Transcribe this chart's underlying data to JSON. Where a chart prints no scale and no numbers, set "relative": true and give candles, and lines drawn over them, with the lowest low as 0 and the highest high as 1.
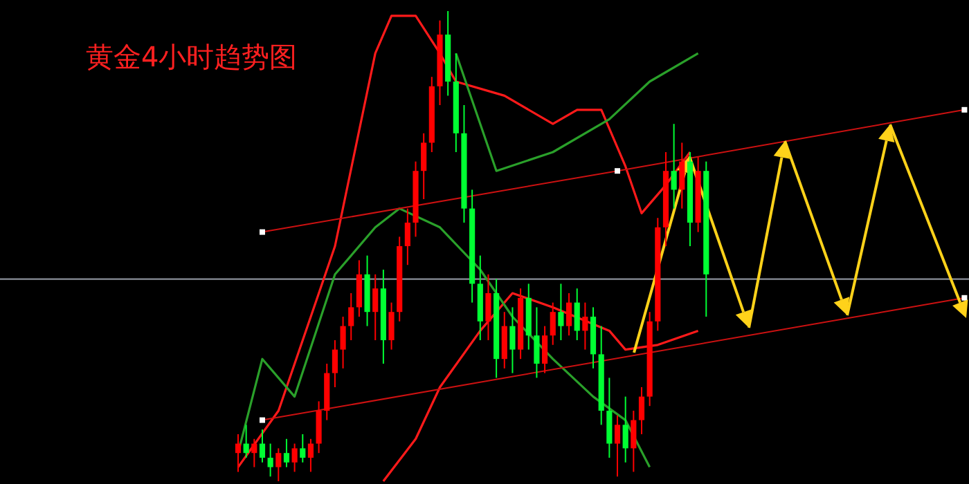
{
  "chart_data": {
    "type": "candlestick",
    "title": "黄金4小时趋势图",
    "relative": true,
    "categories": [
      null,
      null,
      null,
      null,
      null,
      null,
      null,
      null,
      null,
      null,
      null,
      null,
      null,
      null,
      null,
      null,
      null,
      null,
      null,
      null,
      null,
      null,
      null,
      null,
      null,
      null,
      null,
      null,
      null,
      null,
      null,
      null,
      null,
      null,
      null,
      null,
      null,
      null,
      null,
      null,
      null,
      null,
      null,
      null,
      null,
      null,
      null,
      null,
      null,
      null,
      null,
      null,
      null,
      null,
      null,
      null,
      null,
      null,
      null,
      null,
      null,
      null,
      null,
      null,
      null,
      null,
      null,
      null,
      null,
      null,
      null,
      null,
      null,
      null,
      null,
      null,
      null,
      null,
      null,
      null,
      null,
      null,
      null,
      null,
      null,
      null,
      null,
      null,
      null,
      null,
      null
    ],
    "ohlc": [
      [
        0.06,
        0.1,
        0.02,
        0.08
      ],
      [
        0.08,
        0.12,
        0.05,
        0.06
      ],
      [
        0.06,
        0.09,
        0.03,
        0.08
      ],
      [
        0.08,
        0.11,
        0.04,
        0.05
      ],
      [
        0.05,
        0.08,
        0.01,
        0.03
      ],
      [
        0.03,
        0.07,
        0.0,
        0.06
      ],
      [
        0.06,
        0.09,
        0.03,
        0.04
      ],
      [
        0.04,
        0.08,
        0.02,
        0.07
      ],
      [
        0.07,
        0.1,
        0.04,
        0.05
      ],
      [
        0.05,
        0.09,
        0.02,
        0.08
      ],
      [
        0.08,
        0.17,
        0.06,
        0.15
      ],
      [
        0.15,
        0.25,
        0.13,
        0.23
      ],
      [
        0.23,
        0.3,
        0.2,
        0.28
      ],
      [
        0.28,
        0.35,
        0.24,
        0.33
      ],
      [
        0.33,
        0.4,
        0.3,
        0.37
      ],
      [
        0.37,
        0.47,
        0.35,
        0.44
      ],
      [
        0.44,
        0.48,
        0.33,
        0.36
      ],
      [
        0.36,
        0.44,
        0.3,
        0.41
      ],
      [
        0.41,
        0.45,
        0.25,
        0.3
      ],
      [
        0.3,
        0.38,
        0.28,
        0.36
      ],
      [
        0.36,
        0.52,
        0.34,
        0.5
      ],
      [
        0.5,
        0.58,
        0.46,
        0.55
      ],
      [
        0.55,
        0.68,
        0.52,
        0.66
      ],
      [
        0.66,
        0.74,
        0.6,
        0.72
      ],
      [
        0.72,
        0.86,
        0.7,
        0.84
      ],
      [
        0.84,
        0.98,
        0.8,
        0.95
      ],
      [
        0.95,
        1.0,
        0.82,
        0.85
      ],
      [
        0.85,
        0.91,
        0.7,
        0.74
      ],
      [
        0.74,
        0.8,
        0.55,
        0.58
      ],
      [
        0.58,
        0.62,
        0.38,
        0.42
      ],
      [
        0.42,
        0.48,
        0.3,
        0.34
      ],
      [
        0.34,
        0.44,
        0.3,
        0.4
      ],
      [
        0.4,
        0.43,
        0.22,
        0.26
      ],
      [
        0.26,
        0.36,
        0.24,
        0.33
      ],
      [
        0.33,
        0.37,
        0.23,
        0.28
      ],
      [
        0.28,
        0.41,
        0.26,
        0.39
      ],
      [
        0.39,
        0.42,
        0.28,
        0.31
      ],
      [
        0.31,
        0.37,
        0.22,
        0.25
      ],
      [
        0.25,
        0.33,
        0.23,
        0.31
      ],
      [
        0.31,
        0.38,
        0.29,
        0.36
      ],
      [
        0.36,
        0.42,
        0.3,
        0.33
      ],
      [
        0.33,
        0.4,
        0.31,
        0.38
      ],
      [
        0.38,
        0.41,
        0.3,
        0.32
      ],
      [
        0.32,
        0.38,
        0.28,
        0.35
      ],
      [
        0.35,
        0.37,
        0.24,
        0.27
      ],
      [
        0.27,
        0.33,
        0.12,
        0.15
      ],
      [
        0.15,
        0.22,
        0.05,
        0.08
      ],
      [
        0.08,
        0.14,
        0.01,
        0.12
      ],
      [
        0.12,
        0.18,
        0.04,
        0.07
      ],
      [
        0.07,
        0.15,
        0.02,
        0.13
      ],
      [
        0.13,
        0.2,
        0.1,
        0.18
      ],
      [
        0.18,
        0.36,
        0.16,
        0.34
      ],
      [
        0.34,
        0.56,
        0.32,
        0.54
      ],
      [
        0.54,
        0.7,
        0.5,
        0.66
      ],
      [
        0.66,
        0.76,
        0.58,
        0.62
      ],
      [
        0.62,
        0.72,
        0.58,
        0.68
      ],
      [
        0.68,
        0.7,
        0.5,
        0.55
      ],
      [
        0.55,
        0.69,
        0.53,
        0.66
      ],
      [
        0.66,
        0.68,
        0.35,
        0.44
      ],
      null,
      null,
      null,
      null,
      null,
      null,
      null,
      null,
      null,
      null,
      null,
      null,
      null,
      null,
      null,
      null,
      null,
      null,
      null,
      null,
      null,
      null,
      null,
      null,
      null,
      null,
      null,
      null,
      null,
      null,
      null,
      null
    ],
    "colors": [
      "#ff0000",
      "#00ff33",
      "#ff0000",
      "#00ff33",
      "#00ff33",
      "#ff0000",
      "#00ff33",
      "#ff0000",
      "#00ff33",
      "#ff0000",
      "#ff0000",
      "#ff0000",
      "#ff0000",
      "#ff0000",
      "#ff0000",
      "#ff0000",
      "#00ff33",
      "#ff0000",
      "#00ff33",
      "#ff0000",
      "#ff0000",
      "#ff0000",
      "#ff0000",
      "#ff0000",
      "#ff0000",
      "#ff0000",
      "#00ff33",
      "#00ff33",
      "#00ff33",
      "#00ff33",
      "#00ff33",
      "#ff0000",
      "#00ff33",
      "#ff0000",
      "#00ff33",
      "#ff0000",
      "#00ff33",
      "#00ff33",
      "#ff0000",
      "#ff0000",
      "#00ff33",
      "#ff0000",
      "#00ff33",
      "#ff0000",
      "#00ff33",
      "#00ff33",
      "#00ff33",
      "#ff0000",
      "#00ff33",
      "#ff0000",
      "#ff0000",
      "#ff0000",
      "#ff0000",
      "#ff0000",
      "#00ff33",
      "#ff0000",
      "#00ff33",
      "#ff0000",
      "#00ff33",
      null,
      null,
      null,
      null,
      null,
      null,
      null,
      null,
      null,
      null,
      null,
      null,
      null,
      null,
      null,
      null,
      null,
      null,
      null,
      null,
      null,
      null,
      null,
      null,
      null,
      null,
      null,
      null,
      null,
      null,
      null,
      null
    ],
    "series": [
      {
        "type": "line",
        "color": "#ff1a1a",
        "values": [
          0.03,
          null,
          null,
          null,
          null,
          0.15,
          null,
          null,
          null,
          null,
          null,
          null,
          0.5,
          null,
          null,
          null,
          null,
          0.91,
          null,
          0.99,
          null,
          null,
          0.99,
          null,
          null,
          0.91,
          null,
          0.85,
          null,
          null,
          null,
          null,
          null,
          0.82,
          null,
          null,
          null,
          null,
          null,
          0.76,
          null,
          null,
          0.79,
          null,
          null,
          0.79,
          null,
          null,
          0.67,
          null,
          0.57,
          null,
          null,
          0.63,
          null,
          null,
          0.7,
          null,
          null,
          null,
          null,
          null,
          null,
          null,
          null,
          null,
          null,
          null,
          null,
          null,
          null,
          null,
          null,
          null,
          null,
          null,
          null,
          null,
          null,
          null,
          null,
          null,
          null,
          null,
          null,
          null,
          null,
          null,
          null,
          null,
          null
        ]
      },
      {
        "type": "line",
        "color": "#ff1a1a",
        "values": [
          null,
          null,
          null,
          null,
          null,
          null,
          null,
          null,
          null,
          null,
          null,
          null,
          null,
          null,
          null,
          null,
          null,
          null,
          0.0,
          null,
          null,
          null,
          0.09,
          null,
          null,
          0.2,
          null,
          null,
          null,
          null,
          0.32,
          null,
          null,
          null,
          0.4,
          null,
          null,
          null,
          null,
          0.37,
          null,
          null,
          null,
          null,
          null,
          null,
          0.32,
          null,
          0.28,
          null,
          null,
          null,
          0.29,
          null,
          null,
          null,
          null,
          0.32,
          null,
          null,
          null,
          null,
          null,
          null,
          null,
          null,
          null,
          null,
          null,
          null,
          null,
          null,
          null,
          null,
          null,
          null,
          null,
          null,
          null,
          null,
          null,
          null,
          null,
          null,
          null,
          null,
          null,
          null,
          null,
          null,
          null
        ]
      },
      {
        "type": "line",
        "color": "#2aa02a",
        "values": [
          null,
          null,
          null,
          null,
          null,
          null,
          null,
          null,
          null,
          null,
          null,
          null,
          null,
          null,
          null,
          null,
          null,
          null,
          null,
          null,
          null,
          null,
          null,
          null,
          null,
          null,
          null,
          0.91,
          null,
          null,
          null,
          null,
          0.66,
          null,
          null,
          null,
          null,
          null,
          null,
          0.7,
          null,
          null,
          null,
          null,
          null,
          null,
          0.77,
          null,
          null,
          null,
          null,
          0.85,
          null,
          null,
          null,
          null,
          null,
          0.91,
          null,
          null,
          null,
          null,
          null,
          null,
          null,
          null,
          null,
          null,
          null,
          null,
          null,
          null,
          null,
          null,
          null,
          null,
          null,
          null,
          null,
          null,
          null,
          null,
          null,
          null,
          null,
          null,
          null,
          null,
          null,
          null,
          null
        ]
      },
      {
        "type": "line",
        "color": "#2aa02a",
        "values": [
          0.06,
          null,
          null,
          0.26,
          null,
          null,
          null,
          0.18,
          null,
          null,
          null,
          null,
          0.44,
          null,
          null,
          null,
          null,
          0.54,
          null,
          null,
          0.58,
          null,
          null,
          null,
          null,
          0.54,
          null,
          null,
          null,
          null,
          0.45,
          null,
          null,
          null,
          0.35,
          null,
          null,
          null,
          null,
          0.26,
          null,
          null,
          null,
          null,
          0.18,
          null,
          null,
          null,
          0.13,
          null,
          null,
          0.03,
          null,
          null,
          null,
          null,
          null,
          null,
          null,
          null,
          null,
          null,
          null,
          null,
          null,
          null,
          null,
          null,
          null,
          null,
          null,
          null,
          null,
          null,
          null,
          null,
          null,
          null,
          null,
          null,
          null,
          null,
          null,
          null,
          null,
          null,
          null,
          null,
          null,
          null,
          null
        ]
      },
      {
        "type": "line",
        "color": "#cc1111",
        "marker": "square",
        "values": [
          null,
          null,
          null,
          0.53,
          null,
          null,
          null,
          null,
          null,
          null,
          null,
          null,
          null,
          null,
          null,
          null,
          null,
          null,
          null,
          null,
          null,
          null,
          null,
          null,
          null,
          null,
          null,
          null,
          null,
          null,
          null,
          null,
          null,
          null,
          null,
          null,
          null,
          null,
          null,
          null,
          null,
          null,
          null,
          null,
          null,
          null,
          null,
          0.66,
          null,
          null,
          null,
          null,
          null,
          null,
          null,
          null,
          null,
          null,
          null,
          null,
          null,
          null,
          null,
          null,
          null,
          null,
          null,
          null,
          null,
          null,
          null,
          null,
          null,
          null,
          null,
          null,
          null,
          null,
          null,
          null,
          null,
          null,
          null,
          null,
          null,
          null,
          null,
          null,
          null,
          null,
          0.79
        ]
      },
      {
        "type": "line",
        "color": "#cc1111",
        "marker": "square",
        "values": [
          null,
          null,
          null,
          0.13,
          null,
          null,
          null,
          null,
          null,
          null,
          null,
          null,
          null,
          null,
          null,
          null,
          null,
          null,
          null,
          null,
          null,
          null,
          null,
          null,
          null,
          null,
          null,
          null,
          null,
          null,
          null,
          null,
          null,
          null,
          null,
          null,
          null,
          null,
          null,
          null,
          null,
          null,
          null,
          null,
          null,
          null,
          null,
          null,
          null,
          null,
          null,
          null,
          null,
          null,
          null,
          null,
          null,
          null,
          null,
          null,
          null,
          null,
          null,
          null,
          null,
          null,
          null,
          null,
          null,
          null,
          null,
          null,
          null,
          null,
          null,
          null,
          null,
          null,
          null,
          null,
          null,
          null,
          null,
          null,
          null,
          null,
          null,
          null,
          null,
          null,
          0.39
        ]
      }
    ],
    "ref_lines": [
      {
        "axis": "y",
        "value": 0.43,
        "color": "#8a8f99"
      }
    ]
  }
}
